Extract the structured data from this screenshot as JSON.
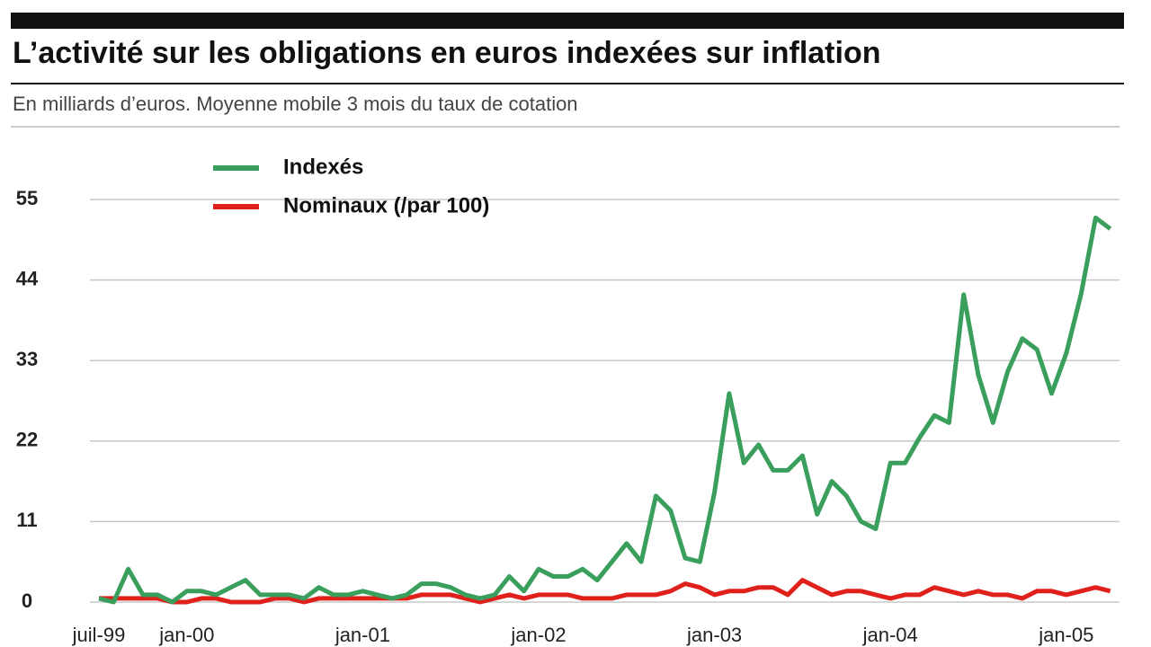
{
  "chart_data": {
    "type": "line",
    "title": "L’activité sur les obligations en euros indexées sur inflation",
    "subtitle": "En milliards d’euros. Moyenne mobile 3 mois du taux de cotation",
    "categories": [
      "juil-99",
      null,
      null,
      null,
      null,
      null,
      "jan-00",
      null,
      null,
      null,
      null,
      null,
      null,
      null,
      null,
      null,
      null,
      null,
      "jan-01",
      null,
      null,
      null,
      null,
      null,
      null,
      null,
      null,
      null,
      null,
      null,
      "jan-02",
      null,
      null,
      null,
      null,
      null,
      null,
      null,
      null,
      null,
      null,
      null,
      "jan-03",
      null,
      null,
      null,
      null,
      null,
      null,
      null,
      null,
      null,
      null,
      null,
      "jan-04",
      null,
      null,
      null,
      null,
      null,
      null,
      null,
      null,
      null,
      null,
      null,
      "jan-05",
      null,
      null,
      null
    ],
    "series": [
      {
        "name": "Indexés",
        "color": "#3a9e5c",
        "values": [
          0.5,
          0,
          4.5,
          1,
          1,
          0,
          1.5,
          1.5,
          1,
          2,
          3,
          1,
          1,
          1,
          0.5,
          2,
          1,
          1,
          1.5,
          1,
          0.5,
          1,
          2.5,
          2.5,
          2,
          1,
          0.5,
          1,
          3.5,
          1.5,
          4.5,
          3.5,
          3.5,
          4.5,
          3,
          5.5,
          8,
          5.5,
          14.5,
          12.5,
          6,
          5.5,
          15,
          28.5,
          19,
          21.5,
          18,
          18,
          20,
          12,
          16.5,
          14.5,
          11,
          10,
          19,
          19,
          22.5,
          25.5,
          24.5,
          42,
          31,
          24.5,
          31.5,
          36,
          34.5,
          28.5,
          34,
          42,
          52.5,
          51
        ]
      },
      {
        "name": "Nominaux (/par 100)",
        "color": "#e0201b",
        "values": [
          0.5,
          0.5,
          0.5,
          0.5,
          0.5,
          0,
          0,
          0.5,
          0.5,
          0,
          0,
          0,
          0.5,
          0.5,
          0,
          0.5,
          0.5,
          0.5,
          0.5,
          0.5,
          0.5,
          0.5,
          1,
          1,
          1,
          0.5,
          0,
          0.5,
          1,
          0.5,
          1,
          1,
          1,
          0.5,
          0.5,
          0.5,
          1,
          1,
          1,
          1.5,
          2.5,
          2,
          1,
          1.5,
          1.5,
          2,
          2,
          1,
          3,
          2,
          1,
          1.5,
          1.5,
          1,
          0.5,
          1,
          1,
          2,
          1.5,
          1,
          1.5,
          1,
          1,
          0.5,
          1.5,
          1.5,
          1,
          1.5,
          2,
          1.5
        ]
      }
    ],
    "ylim": [
      -1,
      57
    ],
    "yticks": [
      0,
      11,
      22,
      33,
      44,
      55
    ],
    "grid": true
  }
}
